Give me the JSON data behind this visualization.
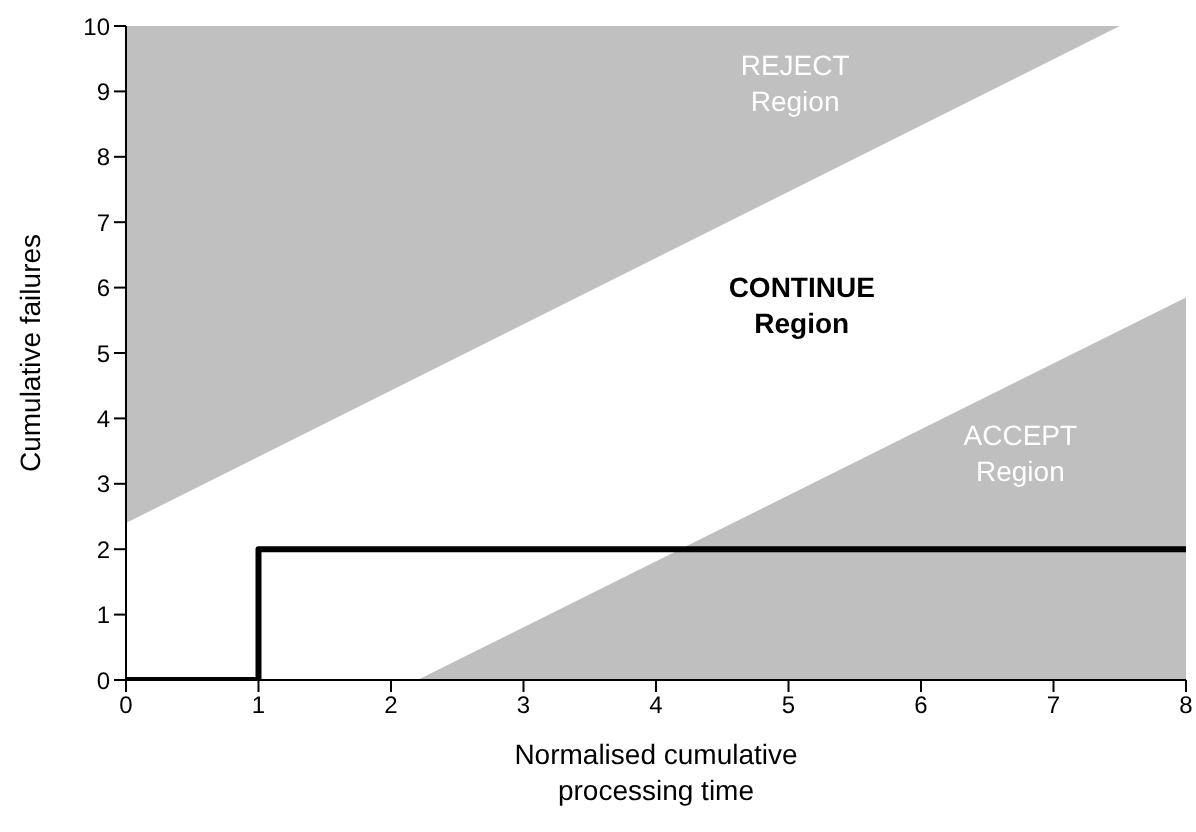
{
  "chart_data": {
    "type": "area",
    "xlabel": "Normalised cumulative\nprocessing time",
    "ylabel": "Cumulative failures",
    "xlim": [
      0,
      8
    ],
    "xticks": [
      0,
      1,
      2,
      3,
      4,
      5,
      6,
      7,
      8
    ],
    "ylim": [
      0,
      10
    ],
    "yticks": [
      0,
      1,
      2,
      3,
      4,
      5,
      6,
      7,
      8,
      9,
      10
    ],
    "grid": false,
    "legend": false,
    "series": [
      {
        "color": "#c0c0c0",
        "x": [
          0,
          7.5,
          8
        ],
        "values": [
          2.4,
          10,
          10
        ]
      },
      {
        "color": "#bfbfbf",
        "x": [
          2.2,
          8
        ],
        "values": [
          0,
          5.85
        ]
      },
      {
        "type": "step",
        "color": "#000000",
        "x": [
          0,
          1,
          8
        ],
        "values": [
          0,
          2,
          2
        ]
      }
    ],
    "annotations": [
      "REJECT\nRegion",
      "CONTINUE\nRegion",
      "ACCEPT\nRegion"
    ]
  }
}
